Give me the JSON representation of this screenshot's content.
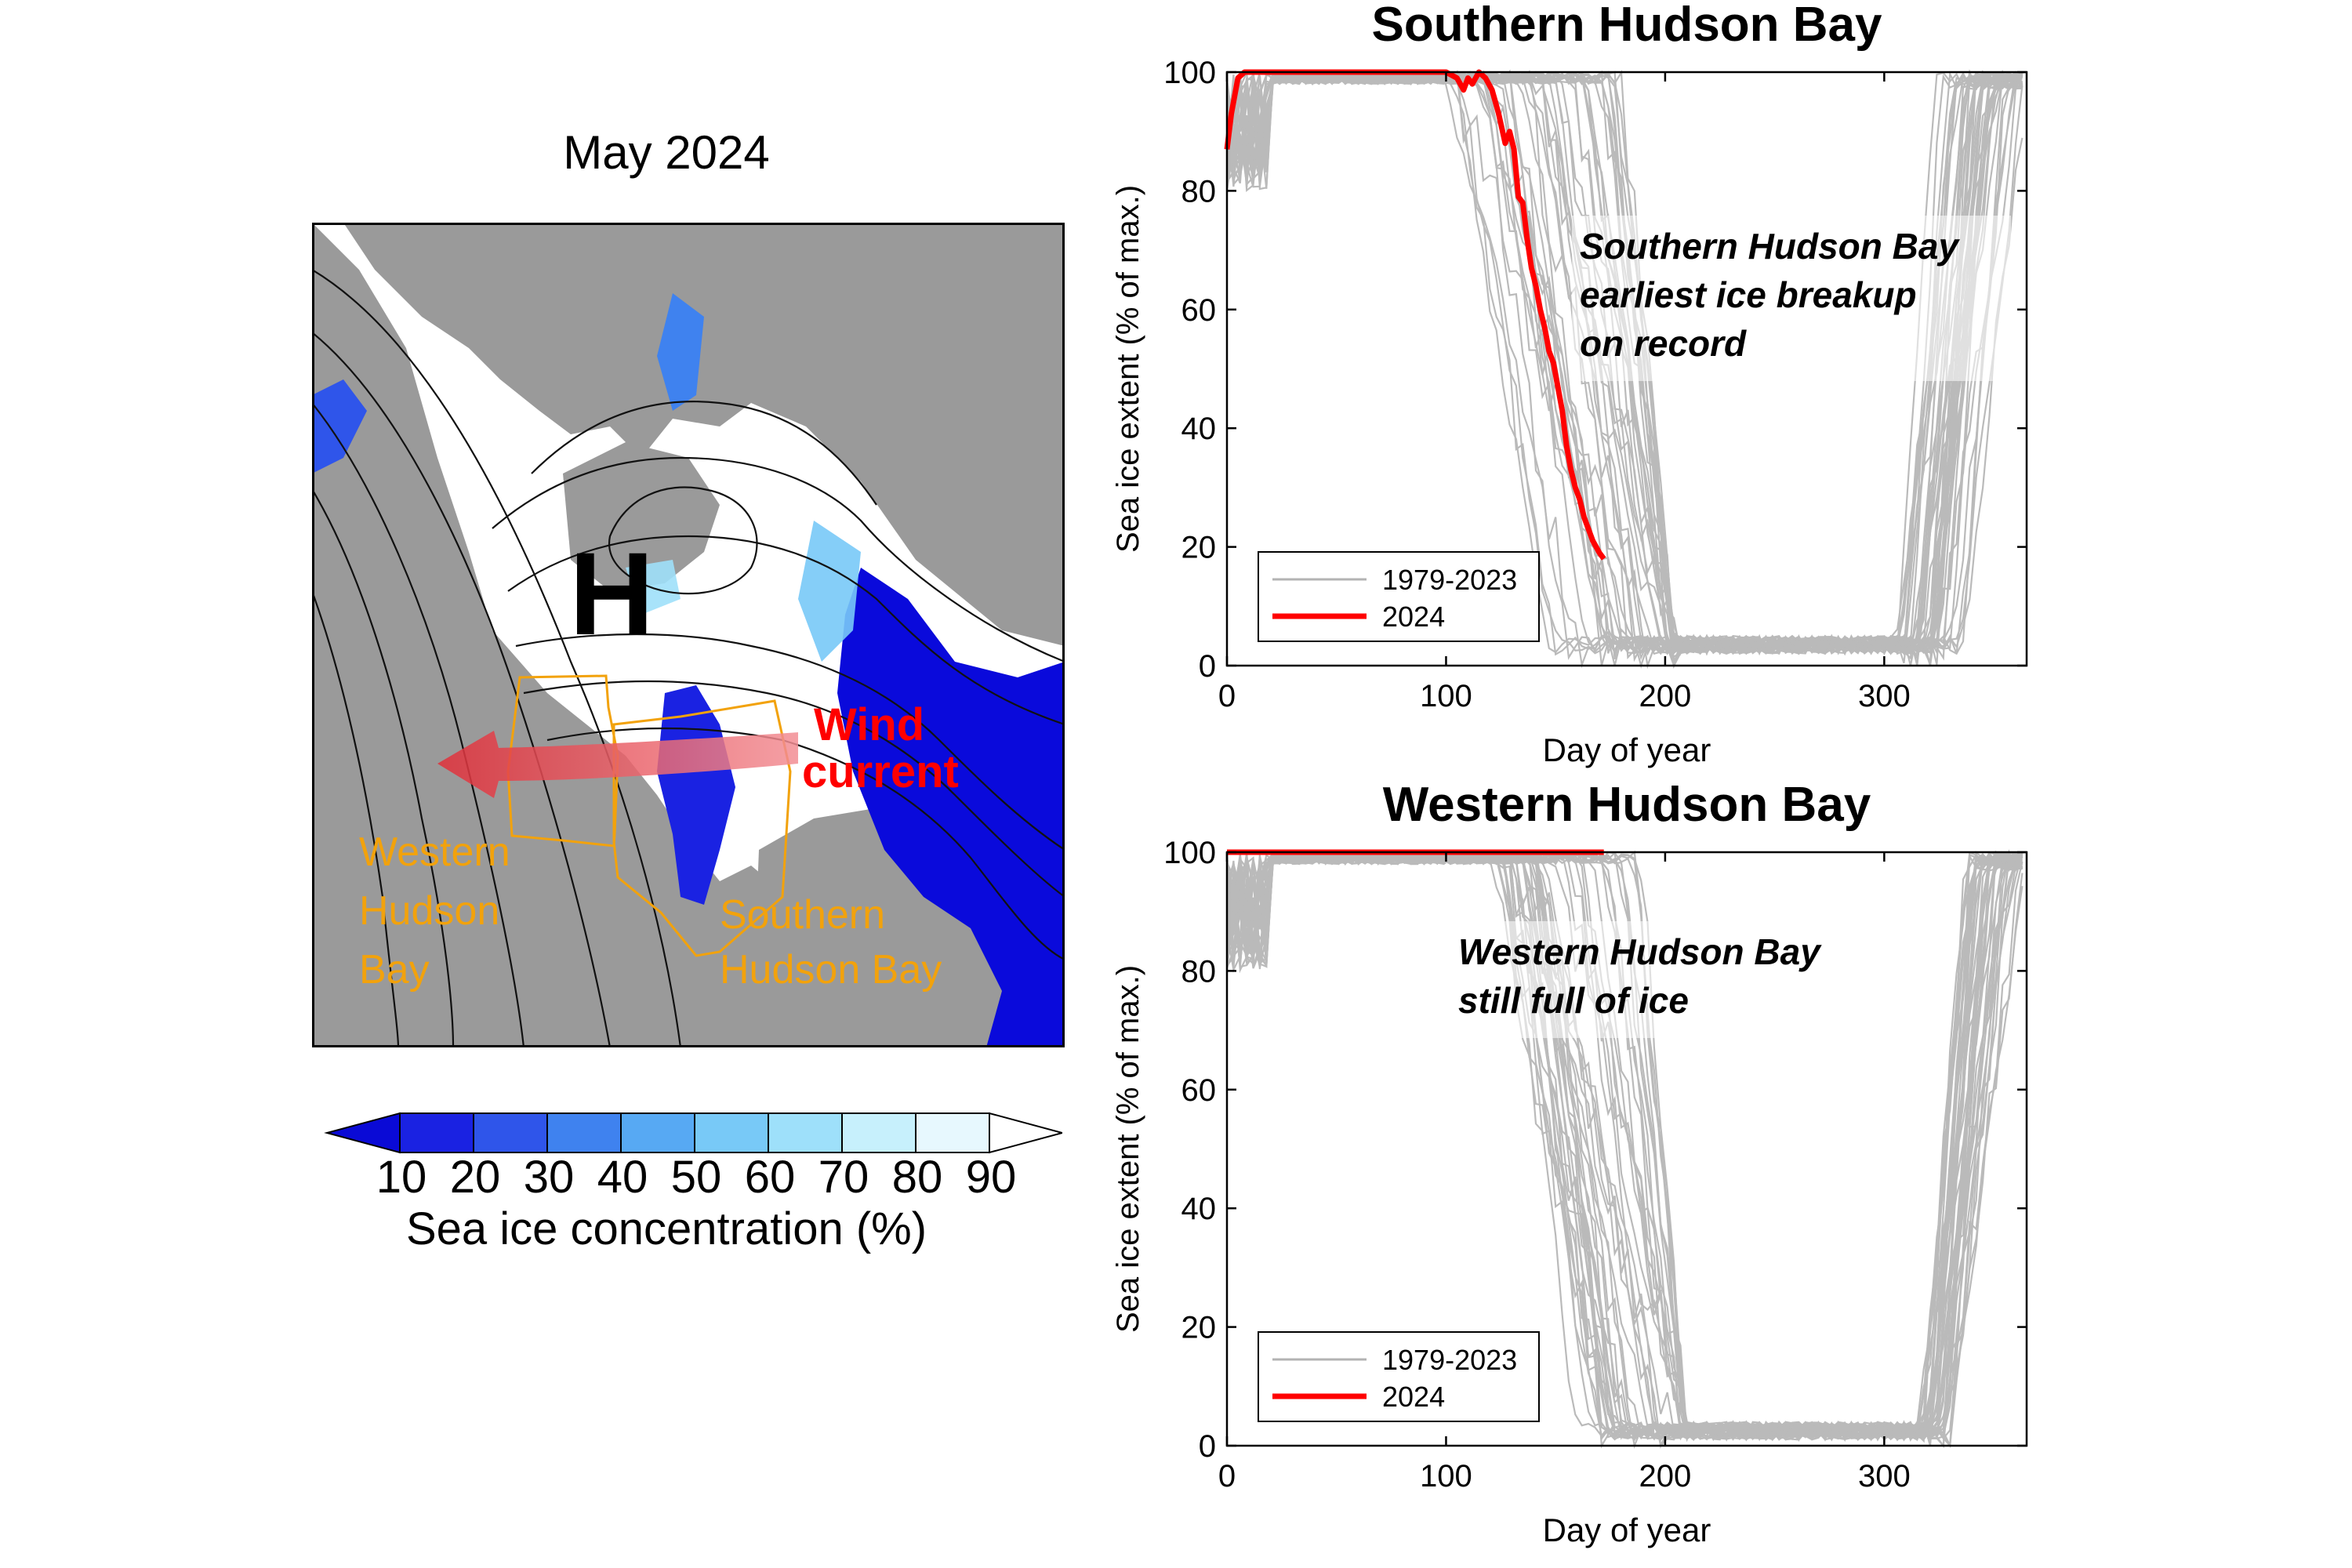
{
  "map": {
    "title": "May 2024",
    "high_label": "H",
    "wind_label_line1": "Wind",
    "wind_label_line2": "current",
    "region_west_lines": [
      "Western",
      "Hudson",
      "Bay"
    ],
    "region_south_lines": [
      "Southern",
      "Hudson Bay"
    ],
    "colors": {
      "land": "#9a9a9a",
      "ice": "#ffffff",
      "open_water": "#0a0adb",
      "wind": "#ff0000",
      "regions": "#f2a20c",
      "contours": "#111111"
    }
  },
  "colorbar": {
    "ticks": [
      "10",
      "20",
      "30",
      "40",
      "50",
      "60",
      "70",
      "80",
      "90"
    ],
    "label": "Sea ice concentration (%)",
    "colors": [
      "#0a0ad6",
      "#1a22e2",
      "#2f55ea",
      "#3f82ef",
      "#57a9f3",
      "#78c9f7",
      "#9ee0fa",
      "#c7f0fc",
      "#e7f8fe",
      "#ffffff"
    ]
  },
  "chart_data": [
    {
      "type": "line",
      "title": "Southern Hudson Bay",
      "xlabel": "Day of year",
      "ylabel": "Sea ice extent (% of max.)",
      "xlim": [
        0,
        365
      ],
      "ylim": [
        0,
        100
      ],
      "xticks": [
        "0",
        "100",
        "200",
        "300"
      ],
      "yticks": [
        "0",
        "20",
        "40",
        "60",
        "80",
        "100"
      ],
      "legend": [
        "1979-2023",
        "2024"
      ],
      "legend_position": "bottom-left",
      "annotation": [
        "Southern Hudson Bay",
        "earliest ice breakup",
        "on record"
      ],
      "colors": {
        "historical": "#b3b3b3",
        "current": "#ff0000"
      },
      "series": [
        {
          "name": "2024",
          "x": [
            0,
            2,
            5,
            8,
            12,
            20,
            40,
            60,
            80,
            100,
            105,
            108,
            110,
            112,
            115,
            118,
            121,
            124,
            127,
            129,
            131,
            133,
            135,
            137,
            139,
            141,
            143,
            145,
            147,
            149,
            151,
            153,
            155,
            157,
            159,
            161,
            163,
            165,
            167,
            170,
            172
          ],
          "y": [
            87,
            93,
            99,
            100,
            100,
            100,
            100,
            100,
            100,
            100,
            99,
            97,
            99,
            98,
            100,
            99,
            97,
            93,
            88,
            90,
            87,
            79,
            78,
            72,
            67,
            64,
            60,
            57,
            53,
            51,
            47,
            43,
            37,
            33,
            30,
            28,
            25,
            23,
            21,
            19,
            18
          ]
        }
      ],
      "historical_summary": {
        "breakup_start_day_range": [
          100,
          180
        ],
        "ice_free_days": [
          185,
          300
        ],
        "ice_free_level": 2,
        "freezeup_day_range": [
          305,
          355
        ],
        "year_count": 45
      }
    },
    {
      "type": "line",
      "title": "Western Hudson Bay",
      "xlabel": "Day of year",
      "ylabel": "Sea ice extent (% of max.)",
      "xlim": [
        0,
        365
      ],
      "ylim": [
        0,
        100
      ],
      "xticks": [
        "0",
        "100",
        "200",
        "300"
      ],
      "yticks": [
        "0",
        "20",
        "40",
        "60",
        "80",
        "100"
      ],
      "legend": [
        "1979-2023",
        "2024"
      ],
      "legend_position": "bottom-left",
      "annotation": [
        "Western Hudson Bay",
        "still full of ice"
      ],
      "colors": {
        "historical": "#b3b3b3",
        "current": "#ff0000"
      },
      "series": [
        {
          "name": "2024",
          "x": [
            0,
            50,
            100,
            150,
            172
          ],
          "y": [
            100,
            100,
            100,
            100,
            100
          ]
        }
      ],
      "historical_summary": {
        "breakup_start_day_range": [
          120,
          190
        ],
        "ice_free_days": [
          190,
          310
        ],
        "ice_free_level": 1,
        "freezeup_day_range": [
          315,
          350
        ],
        "year_count": 45
      }
    }
  ]
}
